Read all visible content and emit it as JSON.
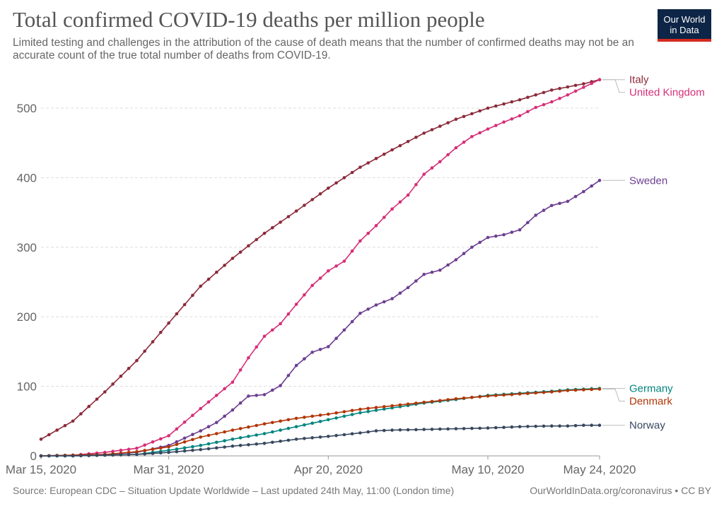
{
  "header": {
    "title": "Total confirmed COVID-19 deaths per million people",
    "subtitle": "Limited testing and challenges in the attribution of the cause of death means that the number of confirmed deaths may not be an accurate count of the true total number of deaths from COVID-19."
  },
  "logo": {
    "line1": "Our World",
    "line2": "in Data",
    "bg": "#0d2546",
    "accent": "#d42b21"
  },
  "footer": {
    "source": "Source: European CDC – Situation Update Worldwide – Last updated 24th May, 11:00 (London time)",
    "credit": "OurWorldInData.org/coronavirus • CC BY"
  },
  "chart_data": {
    "type": "line",
    "title": "Total confirmed COVID-19 deaths per million people",
    "ylim": [
      0,
      550
    ],
    "yticks": [
      0,
      100,
      200,
      300,
      400,
      500
    ],
    "grid": "horizontal dashed",
    "x_start": "2020-03-15",
    "x_end": "2020-05-24",
    "xticks": [
      {
        "day": 0,
        "label": "Mar 15, 2020"
      },
      {
        "day": 16,
        "label": "Mar 31, 2020"
      },
      {
        "day": 36,
        "label": "Apr 20, 2020"
      },
      {
        "day": 56,
        "label": "May 10, 2020"
      },
      {
        "day": 70,
        "label": "May 24, 2020"
      }
    ],
    "legend": "labels at line ends (right)",
    "series": [
      {
        "name": "Italy",
        "color": "#8b2a3a",
        "points": [
          [
            0,
            24
          ],
          [
            4,
            50
          ],
          [
            8,
            92
          ],
          [
            12,
            137
          ],
          [
            16,
            191
          ],
          [
            20,
            244
          ],
          [
            24,
            284
          ],
          [
            28,
            320
          ],
          [
            32,
            352
          ],
          [
            36,
            385
          ],
          [
            40,
            415
          ],
          [
            44,
            440
          ],
          [
            48,
            464
          ],
          [
            52,
            484
          ],
          [
            56,
            500
          ],
          [
            60,
            512
          ],
          [
            64,
            526
          ],
          [
            68,
            535
          ],
          [
            70,
            541
          ]
        ]
      },
      {
        "name": "United Kingdom",
        "color": "#d62e77",
        "points": [
          [
            0,
            0
          ],
          [
            4,
            1
          ],
          [
            8,
            5
          ],
          [
            12,
            11
          ],
          [
            16,
            29
          ],
          [
            20,
            68
          ],
          [
            24,
            106
          ],
          [
            26,
            141
          ],
          [
            28,
            172
          ],
          [
            30,
            190
          ],
          [
            32,
            218
          ],
          [
            34,
            245
          ],
          [
            36,
            266
          ],
          [
            38,
            280
          ],
          [
            40,
            309
          ],
          [
            42,
            331
          ],
          [
            44,
            355
          ],
          [
            46,
            375
          ],
          [
            48,
            405
          ],
          [
            50,
            423
          ],
          [
            52,
            443
          ],
          [
            54,
            459
          ],
          [
            56,
            470
          ],
          [
            58,
            480
          ],
          [
            60,
            489
          ],
          [
            62,
            501
          ],
          [
            64,
            509
          ],
          [
            66,
            519
          ],
          [
            68,
            530
          ],
          [
            70,
            541
          ]
        ]
      },
      {
        "name": "Sweden",
        "color": "#6d3e91",
        "points": [
          [
            0,
            0
          ],
          [
            4,
            1
          ],
          [
            8,
            2
          ],
          [
            12,
            5
          ],
          [
            16,
            15
          ],
          [
            20,
            36
          ],
          [
            22,
            48
          ],
          [
            24,
            66
          ],
          [
            26,
            86
          ],
          [
            28,
            88
          ],
          [
            30,
            101
          ],
          [
            32,
            130
          ],
          [
            34,
            149
          ],
          [
            36,
            157
          ],
          [
            38,
            181
          ],
          [
            40,
            205
          ],
          [
            42,
            217
          ],
          [
            44,
            226
          ],
          [
            46,
            242
          ],
          [
            48,
            261
          ],
          [
            50,
            267
          ],
          [
            52,
            282
          ],
          [
            54,
            300
          ],
          [
            56,
            314
          ],
          [
            58,
            318
          ],
          [
            60,
            325
          ],
          [
            62,
            346
          ],
          [
            64,
            360
          ],
          [
            66,
            366
          ],
          [
            68,
            380
          ],
          [
            70,
            396
          ]
        ]
      },
      {
        "name": "Germany",
        "color": "#00847e",
        "points": [
          [
            0,
            0
          ],
          [
            4,
            0
          ],
          [
            8,
            1
          ],
          [
            12,
            2
          ],
          [
            16,
            8
          ],
          [
            20,
            15
          ],
          [
            24,
            24
          ],
          [
            28,
            32
          ],
          [
            32,
            42
          ],
          [
            36,
            52
          ],
          [
            40,
            62
          ],
          [
            44,
            69
          ],
          [
            48,
            76
          ],
          [
            52,
            81
          ],
          [
            56,
            87
          ],
          [
            60,
            90
          ],
          [
            64,
            93
          ],
          [
            66,
            95
          ],
          [
            68,
            96
          ],
          [
            70,
            97
          ]
        ]
      },
      {
        "name": "Denmark",
        "color": "#b13507",
        "points": [
          [
            0,
            0
          ],
          [
            4,
            1
          ],
          [
            8,
            2
          ],
          [
            12,
            6
          ],
          [
            16,
            13
          ],
          [
            20,
            27
          ],
          [
            24,
            37
          ],
          [
            28,
            46
          ],
          [
            32,
            54
          ],
          [
            36,
            60
          ],
          [
            40,
            67
          ],
          [
            44,
            72
          ],
          [
            48,
            77
          ],
          [
            52,
            82
          ],
          [
            56,
            86
          ],
          [
            60,
            89
          ],
          [
            64,
            92
          ],
          [
            66,
            94
          ],
          [
            68,
            95
          ],
          [
            70,
            96
          ]
        ]
      },
      {
        "name": "Norway",
        "color": "#38475f",
        "points": [
          [
            0,
            0
          ],
          [
            4,
            0
          ],
          [
            8,
            1
          ],
          [
            12,
            2
          ],
          [
            16,
            5
          ],
          [
            20,
            9
          ],
          [
            24,
            14
          ],
          [
            28,
            18
          ],
          [
            32,
            24
          ],
          [
            36,
            28
          ],
          [
            40,
            33
          ],
          [
            42,
            36
          ],
          [
            44,
            37
          ],
          [
            48,
            38
          ],
          [
            52,
            39
          ],
          [
            56,
            40
          ],
          [
            60,
            42
          ],
          [
            64,
            43
          ],
          [
            66,
            43
          ],
          [
            68,
            44
          ],
          [
            70,
            44
          ]
        ]
      }
    ]
  }
}
